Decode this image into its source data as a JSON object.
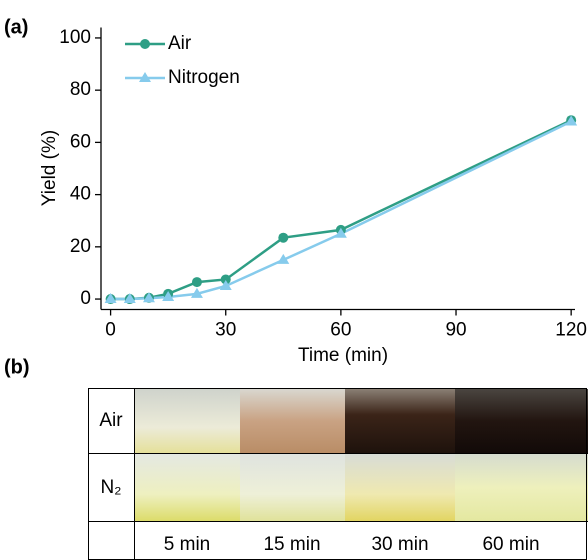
{
  "chart_data": {
    "type": "line",
    "label": "(a)",
    "xlabel": "Time (min)",
    "ylabel": "Yield (%)",
    "series": [
      {
        "name": "Air",
        "color": "#2e9e85",
        "marker": "circle",
        "x": [
          0,
          5,
          10,
          15,
          22.5,
          30,
          45,
          60,
          120
        ],
        "values": [
          0,
          0,
          0.5,
          2,
          6.5,
          7.5,
          23.5,
          26.5,
          68.5
        ]
      },
      {
        "name": "Nitrogen",
        "color": "#86cbec",
        "marker": "triangle",
        "x": [
          0,
          5,
          10,
          15,
          22.5,
          30,
          45,
          60,
          120
        ],
        "values": [
          0,
          0,
          0.3,
          0.8,
          2,
          5,
          15,
          25,
          68
        ]
      }
    ],
    "xlim": [
      -2.5,
      121
    ],
    "ylim": [
      -4,
      104
    ],
    "xticks": [
      0,
      30,
      60,
      90,
      120
    ],
    "yticks": [
      0,
      20,
      40,
      60,
      80,
      100
    ],
    "grid": false,
    "legend": "upper left"
  },
  "table": {
    "label": "(b)",
    "rows": [
      "Air",
      "N₂"
    ],
    "columns": [
      "5 min",
      "15 min",
      "30 min",
      "60 min"
    ]
  }
}
